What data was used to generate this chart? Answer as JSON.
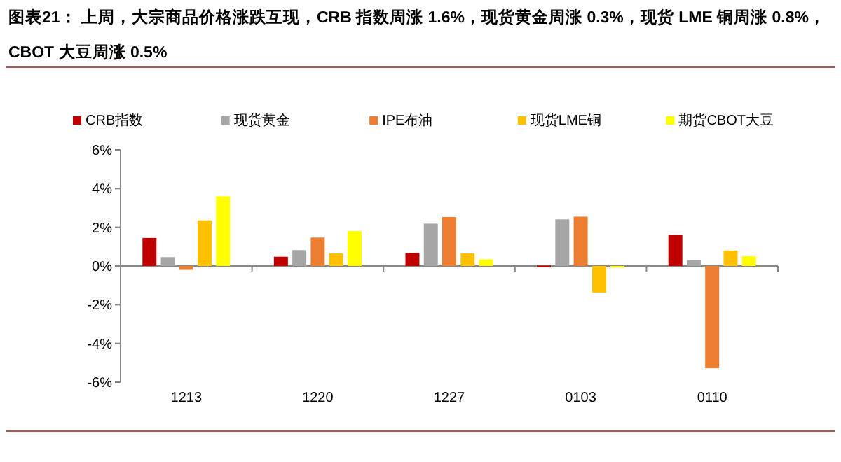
{
  "chart_data": {
    "type": "bar",
    "title": "图表21：  上周，大宗商品价格涨跌互现，CRB 指数周涨 1.6%，现货黄金周涨 0.3%，现货 LME 铜周涨 0.8%，CBOT 大豆周涨 0.5%",
    "categories": [
      "1213",
      "1220",
      "1227",
      "0103",
      "0110"
    ],
    "series": [
      {
        "name": "CRB指数",
        "color": "#c00000",
        "values": [
          1.45,
          0.48,
          0.67,
          0.02,
          1.6
        ]
      },
      {
        "name": "现货黄金",
        "color": "#a6a6a6",
        "values": [
          0.46,
          0.82,
          2.19,
          2.41,
          0.3
        ]
      },
      {
        "name": "IPE布油",
        "color": "#ed7d31",
        "values": [
          -0.2,
          1.47,
          2.53,
          2.55,
          -5.28
        ]
      },
      {
        "name": "现货LME铜",
        "color": "#ffc000",
        "values": [
          2.36,
          0.65,
          0.65,
          -1.37,
          0.8
        ]
      },
      {
        "name": "期货CBOT大豆",
        "color": "#ffff00",
        "values": [
          3.6,
          1.8,
          0.34,
          0,
          0.5
        ]
      }
    ],
    "ylim": [
      -6,
      6
    ],
    "yticks": [
      {
        "value": -6,
        "label": "-6%"
      },
      {
        "value": -4,
        "label": "-4%"
      },
      {
        "value": -2,
        "label": "-2%"
      },
      {
        "value": 0,
        "label": "0%"
      },
      {
        "value": 2,
        "label": "2%"
      },
      {
        "value": 4,
        "label": "4%"
      },
      {
        "value": 6,
        "label": "6%"
      }
    ],
    "legend": "top"
  }
}
